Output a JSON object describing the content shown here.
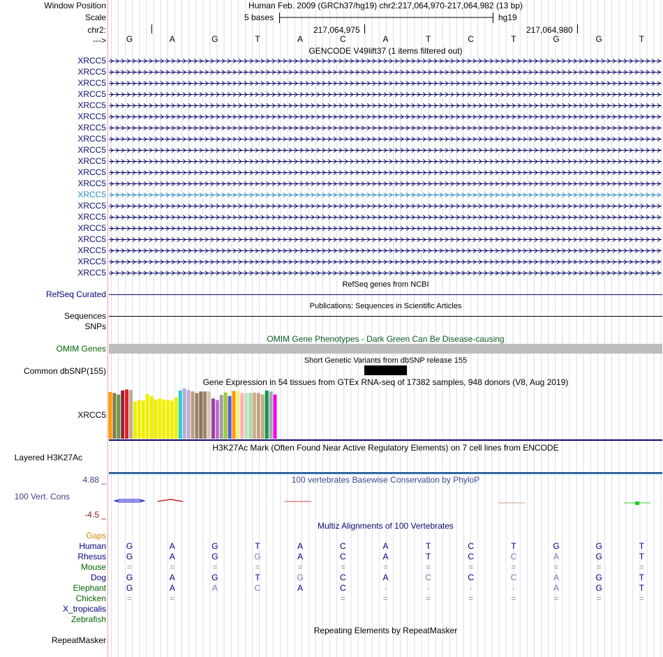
{
  "header": {
    "window_position_label": "Window Position",
    "scale_label": "Scale",
    "chrom_label": "chr2:",
    "strand_label": "--->",
    "position_title": "Human Feb. 2009 (GRCh37/hg19)   chr2:217,064,970-217,064,982 (13 bp)",
    "scale_text": "5 bases",
    "assembly": "hg19",
    "tick_1": "217,064,975",
    "tick_2": "217,064,980"
  },
  "sequence": [
    "G",
    "A",
    "G",
    "T",
    "A",
    "C",
    "A",
    "T",
    "C",
    "T",
    "G",
    "G",
    "T"
  ],
  "gencode": {
    "title": "GENCODE V49lift37 (1 items filtered out)",
    "rows": [
      "XRCC5",
      "XRCC5",
      "XRCC5",
      "XRCC5",
      "XRCC5",
      "XRCC5",
      "XRCC5",
      "XRCC5",
      "XRCC5",
      "XRCC5",
      "XRCC5",
      "XRCC5",
      "XRCC5",
      "XRCC5",
      "XRCC5",
      "XRCC5",
      "XRCC5",
      "XRCC5",
      "XRCC5",
      "XRCC5"
    ],
    "highlight_row_color": "#2a8fc7",
    "row_color": "#0a0a6e"
  },
  "refseq": {
    "title": "RefSeq genes from NCBI",
    "label": "RefSeq Curated"
  },
  "publications": {
    "title": "Publications: Sequences in Scientific Articles",
    "label1": "Sequences",
    "label2": "SNPs"
  },
  "omim": {
    "title": "OMIM Gene Phenotypes - Dark Green Can Be Disease-causing",
    "label": "OMIM Genes"
  },
  "dbsnp": {
    "title": "Short Genetic Variants from dbSNP release 155",
    "label": "Common dbSNP(155)"
  },
  "gtex": {
    "title": "Gene Expression in 54 tissues from GTEx RNA-seq of 17382 samples, 948 donors (V8, Aug 2019)",
    "label": "XRCC5",
    "bars": [
      {
        "color": "#ff9900",
        "level": 0.93
      },
      {
        "color": "#8a7a4a",
        "level": 0.91
      },
      {
        "color": "#5a9e48",
        "level": 0.88
      },
      {
        "color": "#9e1f3c",
        "level": 0.96
      },
      {
        "color": "#e02020",
        "level": 0.98
      },
      {
        "color": "#bcae96",
        "level": 0.97
      },
      {
        "color": "#eeee00",
        "level": 0.74
      },
      {
        "color": "#eeee00",
        "level": 0.77
      },
      {
        "color": "#eeee00",
        "level": 0.76
      },
      {
        "color": "#eeee00",
        "level": 0.89
      },
      {
        "color": "#eeee00",
        "level": 0.85
      },
      {
        "color": "#eeee00",
        "level": 0.78
      },
      {
        "color": "#eeee00",
        "level": 0.8
      },
      {
        "color": "#eeee00",
        "level": 0.78
      },
      {
        "color": "#eeee00",
        "level": 0.77
      },
      {
        "color": "#eeee00",
        "level": 0.76
      },
      {
        "color": "#eeee00",
        "level": 0.82
      },
      {
        "color": "#33cccc",
        "level": 0.96
      },
      {
        "color": "#a6b5d8",
        "level": 1.0
      },
      {
        "color": "#c8a8d0",
        "level": 0.97
      },
      {
        "color": "#b5a184",
        "level": 0.94
      },
      {
        "color": "#9b8466",
        "level": 0.91
      },
      {
        "color": "#8a7658",
        "level": 0.94
      },
      {
        "color": "#9b8466",
        "level": 0.94
      },
      {
        "color": "#dcc3ae",
        "level": 0.94
      },
      {
        "color": "#8e44ad",
        "level": 0.8
      },
      {
        "color": "#cc66cc",
        "level": 0.77
      },
      {
        "color": "#a0a0a0",
        "level": 0.87
      },
      {
        "color": "#99cc33",
        "level": 0.92
      },
      {
        "color": "#5a5ae0",
        "level": 0.85
      },
      {
        "color": "#ff9900",
        "level": 0.95
      },
      {
        "color": "#f0f080",
        "level": 0.95
      },
      {
        "color": "#ffb0b0",
        "level": 0.91
      },
      {
        "color": "#c0e0c0",
        "level": 0.91
      },
      {
        "color": "#a8e0a8",
        "level": 0.91
      },
      {
        "color": "#d0b090",
        "level": 0.92
      },
      {
        "color": "#c0a080",
        "level": 0.91
      },
      {
        "color": "#c8a880",
        "level": 0.88
      },
      {
        "color": "#00994d",
        "level": 0.96
      },
      {
        "color": "#a8a8a8",
        "level": 0.94
      },
      {
        "color": "#ee00ee",
        "level": 0.88
      }
    ]
  },
  "h3k27ac": {
    "title": "H3K27Ac Mark (Often Found Near Active Regulatory Elements) on 7 cell lines from ENCODE",
    "label": "Layered H3K27Ac"
  },
  "phylop": {
    "title": "100 vertebrates Basewise Conservation by PhyloP",
    "label": "100 Vert. Cons",
    "max": "4.88 _",
    "min": "-4.5 _"
  },
  "multiz": {
    "title": "Multiz Alignments of 100 Vertebrates",
    "gaps_label": "Gaps",
    "species": [
      {
        "name": "Human",
        "bases": [
          "G",
          "A",
          "G",
          "T",
          "A",
          "C",
          "A",
          "T",
          "C",
          "T",
          "G",
          "G",
          "T"
        ],
        "light": []
      },
      {
        "name": "Rhesus",
        "bases": [
          "G",
          "A",
          "G",
          "G",
          "A",
          "C",
          "A",
          "T",
          "C",
          "C",
          "A",
          "G",
          "T"
        ],
        "light": [
          3,
          9,
          10
        ]
      },
      {
        "name": "Mouse",
        "bases": [
          "=",
          "=",
          "=",
          "=",
          "=",
          "=",
          "=",
          "=",
          "=",
          "=",
          "=",
          "=",
          "="
        ],
        "light": []
      },
      {
        "name": "Dog",
        "bases": [
          "G",
          "A",
          "G",
          "T",
          "G",
          "C",
          "A",
          "C",
          "C",
          "C",
          "A",
          "G",
          "T"
        ],
        "light": [
          4,
          7,
          9,
          10
        ]
      },
      {
        "name": "Elephant",
        "bases": [
          "G",
          "A",
          "A",
          "C",
          "A",
          "C",
          "-",
          "-",
          "-",
          "-",
          "A",
          "G",
          "T"
        ],
        "light": [
          2,
          3,
          6,
          7,
          8,
          9,
          10
        ]
      },
      {
        "name": "Chicken",
        "bases": [
          "=",
          "=",
          "",
          "",
          "",
          "=",
          "=",
          "=",
          "=",
          "=",
          "=",
          "=",
          "="
        ],
        "light": []
      },
      {
        "name": "X_tropicalis",
        "bases": [
          "",
          "",
          "",
          "",
          "",
          "",
          "",
          "",
          "",
          "",
          "",
          "",
          ""
        ],
        "light": []
      },
      {
        "name": "Zebrafish",
        "bases": [
          "",
          "",
          "",
          "",
          "",
          "",
          "",
          "",
          "",
          "",
          "",
          "",
          ""
        ],
        "light": []
      }
    ]
  },
  "repeatmasker": {
    "title": "Repeating Elements by RepeatMasker",
    "label": "RepeatMasker"
  }
}
